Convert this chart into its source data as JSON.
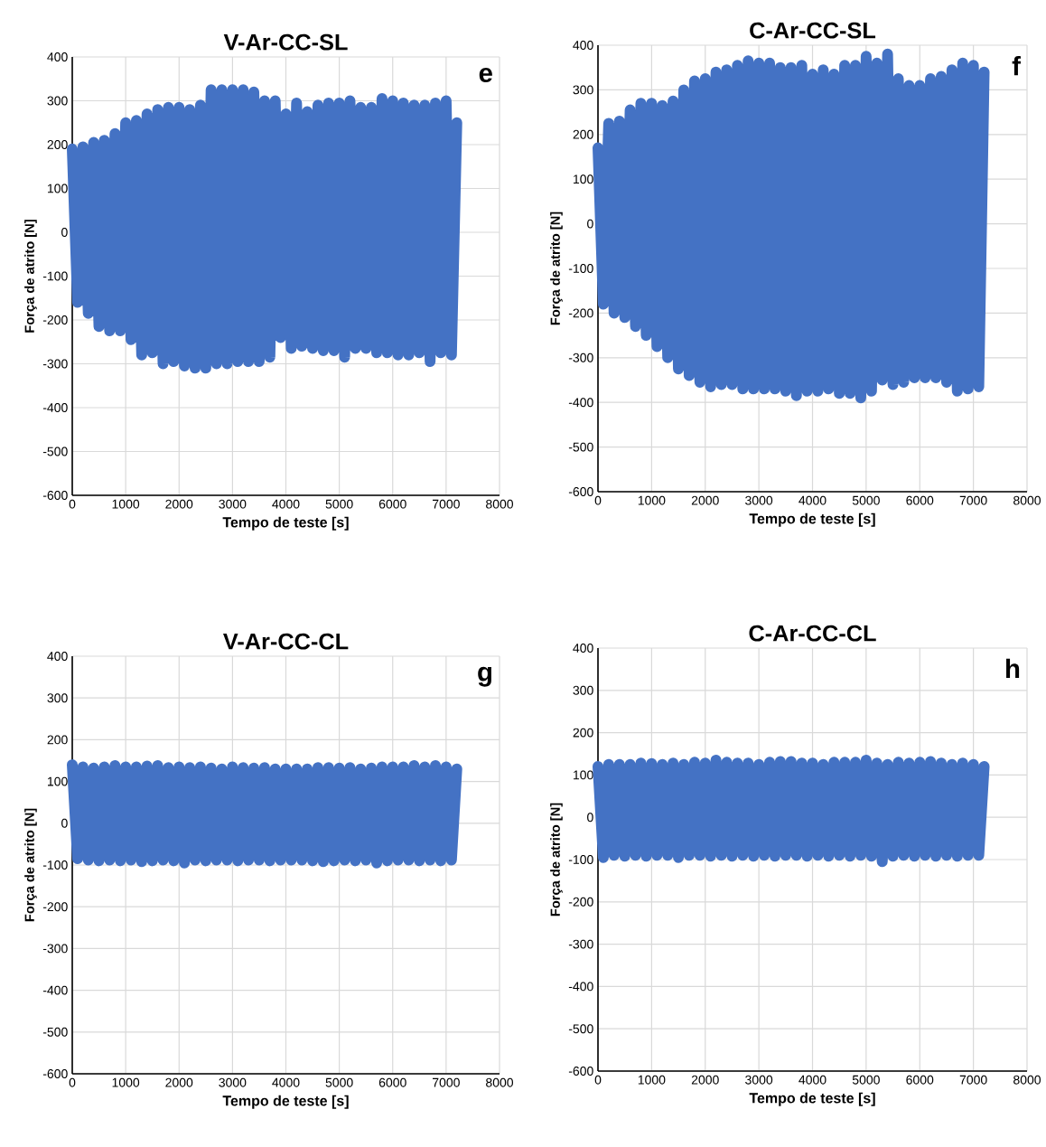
{
  "chart_data": [
    {
      "type": "line",
      "title": "V-Ar-CC-SL",
      "xlabel": "Tempo de teste [s]",
      "ylabel": "Força de atrito [N]",
      "annotations": [
        "e"
      ],
      "grid": true,
      "line_style": "solid",
      "xlim": [
        0,
        8000
      ],
      "ylim": [
        -600,
        400
      ],
      "xticks": [
        0,
        1000,
        2000,
        3000,
        4000,
        5000,
        6000,
        7000,
        8000
      ],
      "yticks": [
        -600,
        -500,
        -400,
        -300,
        -200,
        -100,
        0,
        100,
        200,
        300,
        400
      ],
      "x": [
        0,
        100,
        200,
        300,
        400,
        500,
        600,
        700,
        800,
        900,
        1000,
        1100,
        1200,
        1300,
        1400,
        1500,
        1600,
        1700,
        1800,
        1900,
        2000,
        2100,
        2200,
        2300,
        2400,
        2500,
        2600,
        2700,
        2800,
        2900,
        3000,
        3100,
        3200,
        3300,
        3400,
        3500,
        3600,
        3700,
        3800,
        3900,
        4000,
        4100,
        4200,
        4300,
        4400,
        4500,
        4600,
        4700,
        4800,
        4900,
        5000,
        5100,
        5200,
        5300,
        5400,
        5500,
        5600,
        5700,
        5800,
        5900,
        6000,
        6100,
        6200,
        6300,
        6400,
        6500,
        6600,
        6700,
        6800,
        6900,
        7000,
        7100,
        7200
      ],
      "series": [
        {
          "color": "#4472c4",
          "values": [
            190,
            -160,
            195,
            -185,
            205,
            -215,
            210,
            -225,
            225,
            -225,
            250,
            -245,
            255,
            -280,
            270,
            -275,
            280,
            -300,
            285,
            -295,
            285,
            -305,
            280,
            -310,
            290,
            -310,
            325,
            -300,
            325,
            -300,
            325,
            -295,
            325,
            -295,
            320,
            -295,
            300,
            -285,
            300,
            -240,
            270,
            -265,
            295,
            -260,
            275,
            -265,
            290,
            -270,
            295,
            -270,
            295,
            -285,
            300,
            -265,
            285,
            -265,
            285,
            -275,
            305,
            -275,
            300,
            -280,
            295,
            -280,
            290,
            -275,
            290,
            -295,
            295,
            -275,
            300,
            -280,
            250
          ]
        }
      ]
    },
    {
      "type": "line",
      "title": "C-Ar-CC-SL",
      "xlabel": "Tempo de teste [s]",
      "ylabel": "Força de atrito [N]",
      "annotations": [
        "f"
      ],
      "grid": true,
      "line_style": "solid",
      "xlim": [
        0,
        8000
      ],
      "ylim": [
        -600,
        400
      ],
      "xticks": [
        0,
        1000,
        2000,
        3000,
        4000,
        5000,
        6000,
        7000,
        8000
      ],
      "yticks": [
        -600,
        -500,
        -400,
        -300,
        -200,
        -100,
        0,
        100,
        200,
        300,
        400
      ],
      "x": [
        0,
        100,
        200,
        300,
        400,
        500,
        600,
        700,
        800,
        900,
        1000,
        1100,
        1200,
        1300,
        1400,
        1500,
        1600,
        1700,
        1800,
        1900,
        2000,
        2100,
        2200,
        2300,
        2400,
        2500,
        2600,
        2700,
        2800,
        2900,
        3000,
        3100,
        3200,
        3300,
        3400,
        3500,
        3600,
        3700,
        3800,
        3900,
        4000,
        4100,
        4200,
        4300,
        4400,
        4500,
        4600,
        4700,
        4800,
        4900,
        5000,
        5100,
        5200,
        5300,
        5400,
        5500,
        5600,
        5700,
        5800,
        5900,
        6000,
        6100,
        6200,
        6300,
        6400,
        6500,
        6600,
        6700,
        6800,
        6900,
        7000,
        7100,
        7200
      ],
      "series": [
        {
          "color": "#4472c4",
          "values": [
            170,
            -180,
            225,
            -200,
            230,
            -210,
            255,
            -230,
            270,
            -250,
            270,
            -275,
            265,
            -300,
            275,
            -325,
            300,
            -340,
            320,
            -355,
            325,
            -365,
            340,
            -360,
            345,
            -360,
            355,
            -370,
            365,
            -370,
            360,
            -370,
            360,
            -370,
            350,
            -375,
            350,
            -385,
            355,
            -375,
            335,
            -375,
            345,
            -370,
            335,
            -380,
            355,
            -380,
            355,
            -390,
            375,
            -375,
            360,
            -350,
            380,
            -360,
            325,
            -355,
            310,
            -345,
            310,
            -345,
            325,
            -345,
            330,
            -355,
            345,
            -375,
            360,
            -370,
            355,
            -365,
            340
          ]
        }
      ]
    },
    {
      "type": "line",
      "title": "V-Ar-CC-CL",
      "xlabel": "Tempo de teste [s]",
      "ylabel": "Força de atrito [N]",
      "annotations": [
        "g"
      ],
      "grid": true,
      "line_style": "solid",
      "xlim": [
        0,
        8000
      ],
      "ylim": [
        -600,
        400
      ],
      "xticks": [
        0,
        1000,
        2000,
        3000,
        4000,
        5000,
        6000,
        7000,
        8000
      ],
      "yticks": [
        -600,
        -500,
        -400,
        -300,
        -200,
        -100,
        0,
        100,
        200,
        300,
        400
      ],
      "x": [
        0,
        100,
        200,
        300,
        400,
        500,
        600,
        700,
        800,
        900,
        1000,
        1100,
        1200,
        1300,
        1400,
        1500,
        1600,
        1700,
        1800,
        1900,
        2000,
        2100,
        2200,
        2300,
        2400,
        2500,
        2600,
        2700,
        2800,
        2900,
        3000,
        3100,
        3200,
        3300,
        3400,
        3500,
        3600,
        3700,
        3800,
        3900,
        4000,
        4100,
        4200,
        4300,
        4400,
        4500,
        4600,
        4700,
        4800,
        4900,
        5000,
        5100,
        5200,
        5300,
        5400,
        5500,
        5600,
        5700,
        5800,
        5900,
        6000,
        6100,
        6200,
        6300,
        6400,
        6500,
        6600,
        6700,
        6800,
        6900,
        7000,
        7100,
        7200
      ],
      "series": [
        {
          "color": "#4472c4",
          "values": [
            140,
            -85,
            135,
            -88,
            132,
            -90,
            135,
            -88,
            138,
            -90,
            135,
            -88,
            135,
            -92,
            137,
            -90,
            138,
            -88,
            133,
            -90,
            135,
            -95,
            133,
            -88,
            135,
            -90,
            132,
            -88,
            130,
            -88,
            135,
            -90,
            133,
            -88,
            132,
            -88,
            133,
            -90,
            130,
            -88,
            130,
            -88,
            130,
            -88,
            130,
            -90,
            133,
            -92,
            133,
            -90,
            132,
            -88,
            133,
            -90,
            130,
            -88,
            132,
            -95,
            135,
            -90,
            135,
            -88,
            135,
            -88,
            138,
            -90,
            135,
            -88,
            138,
            -90,
            135,
            -88,
            130
          ]
        }
      ]
    },
    {
      "type": "line",
      "title": "C-Ar-CC-CL",
      "xlabel": "Tempo de teste [s]",
      "ylabel": "Força de atrito [N]",
      "annotations": [
        "h"
      ],
      "grid": true,
      "line_style": "solid",
      "xlim": [
        0,
        8000
      ],
      "ylim": [
        -600,
        400
      ],
      "xticks": [
        0,
        1000,
        2000,
        3000,
        4000,
        5000,
        6000,
        7000,
        8000
      ],
      "yticks": [
        -600,
        -500,
        -400,
        -300,
        -200,
        -100,
        0,
        100,
        200,
        300,
        400
      ],
      "x": [
        0,
        100,
        200,
        300,
        400,
        500,
        600,
        700,
        800,
        900,
        1000,
        1100,
        1200,
        1300,
        1400,
        1500,
        1600,
        1700,
        1800,
        1900,
        2000,
        2100,
        2200,
        2300,
        2400,
        2500,
        2600,
        2700,
        2800,
        2900,
        3000,
        3100,
        3200,
        3300,
        3400,
        3500,
        3600,
        3700,
        3800,
        3900,
        4000,
        4100,
        4200,
        4300,
        4400,
        4500,
        4600,
        4700,
        4800,
        4900,
        5000,
        5100,
        5200,
        5300,
        5400,
        5500,
        5600,
        5700,
        5800,
        5900,
        6000,
        6100,
        6200,
        6300,
        6400,
        6500,
        6600,
        6700,
        6800,
        6900,
        7000,
        7100,
        7200
      ],
      "series": [
        {
          "color": "#4472c4",
          "values": [
            120,
            -95,
            125,
            -90,
            125,
            -92,
            125,
            -90,
            128,
            -92,
            127,
            -90,
            125,
            -90,
            128,
            -95,
            125,
            -90,
            130,
            -90,
            128,
            -92,
            135,
            -90,
            130,
            -92,
            128,
            -90,
            128,
            -92,
            125,
            -90,
            130,
            -92,
            132,
            -90,
            132,
            -90,
            128,
            -92,
            128,
            -90,
            125,
            -92,
            130,
            -90,
            130,
            -92,
            130,
            -90,
            135,
            -92,
            128,
            -105,
            125,
            -92,
            130,
            -90,
            128,
            -92,
            130,
            -90,
            132,
            -92,
            128,
            -90,
            125,
            -92,
            128,
            -90,
            125,
            -90,
            120
          ]
        }
      ]
    }
  ]
}
